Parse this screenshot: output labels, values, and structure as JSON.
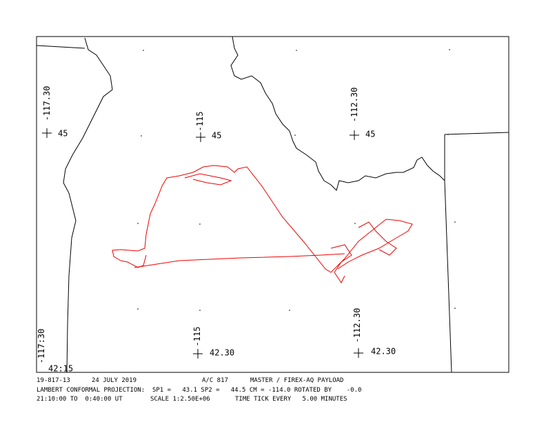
{
  "map": {
    "graticule_labels": [
      {
        "lon": "-117.30",
        "lat": "45"
      },
      {
        "lon": "-115",
        "lat": "45"
      },
      {
        "lon": "-112.30",
        "lat": "45"
      },
      {
        "lon": "-117:30",
        "lat": "42:15"
      },
      {
        "lon": "-115",
        "lat": "42.30"
      },
      {
        "lon": "-112.30",
        "lat": "42.30"
      }
    ]
  },
  "footer": {
    "line1": [
      "19-817-13",
      "24 JULY 2019",
      "A/C 817",
      "MASTER / FIREX-AQ PAYLOAD"
    ],
    "line2": "LAMBERT CONFORMAL PROJECTION:  SP1 =   43.1 SP2 =   44.5 CM = -114.0 ROTATED BY    -0.0",
    "line3": [
      "21:10:00 TO  0:40:00 UT",
      "SCALE 1:2.50E+06",
      "TIME TICK EVERY   5.00 MINUTES"
    ]
  }
}
